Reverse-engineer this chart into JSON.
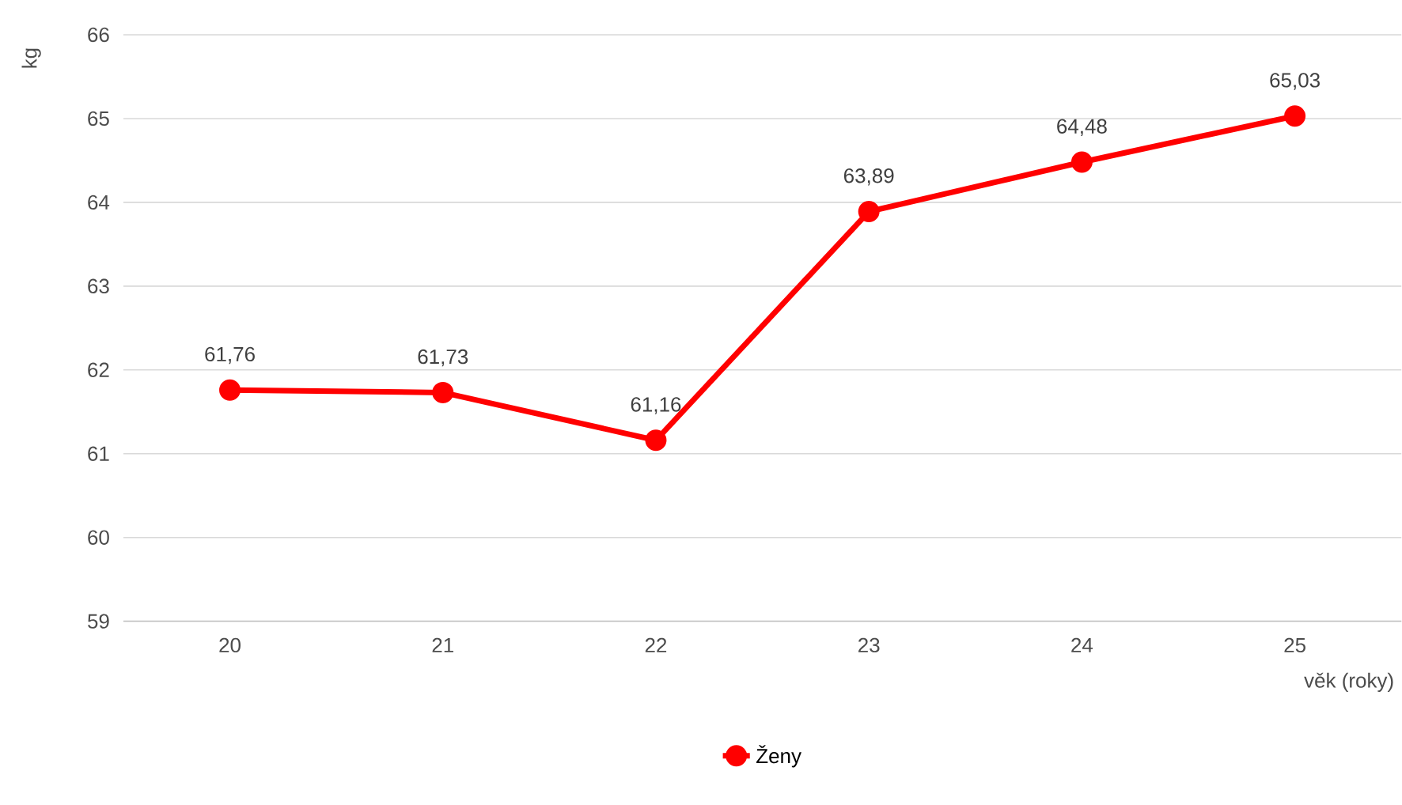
{
  "chart_data": {
    "type": "line",
    "xlabel": "věk (roky)",
    "ylabel": "kg",
    "categories": [
      "20",
      "21",
      "22",
      "23",
      "24",
      "25"
    ],
    "series": [
      {
        "name": "Ženy",
        "color": "#ff0000",
        "values": [
          61.76,
          61.73,
          61.16,
          63.89,
          64.48,
          65.03
        ],
        "value_labels": [
          "61,76",
          "61,73",
          "61,16",
          "63,89",
          "64,48",
          "65,03"
        ]
      }
    ],
    "ylim": [
      59,
      66
    ],
    "yticks": [
      59,
      60,
      61,
      62,
      63,
      64,
      65,
      66
    ],
    "grid": "y",
    "legend": "bottom",
    "marker": "circle",
    "line_style": "solid"
  }
}
